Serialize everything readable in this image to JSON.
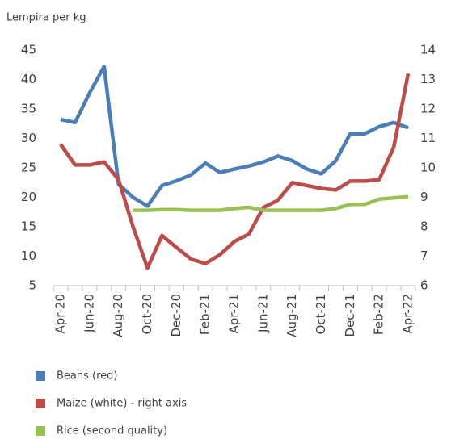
{
  "chart_data": {
    "type": "line",
    "y_axis_label": "Lempira per kg",
    "categories": [
      "Apr-20",
      null,
      "Jun-20",
      null,
      "Aug-20",
      null,
      "Oct-20",
      null,
      "Dec-20",
      null,
      "Feb-21",
      null,
      "Apr-21",
      null,
      "Jun-21",
      null,
      "Aug-21",
      null,
      "Oct-21",
      null,
      "Dec-21",
      null,
      "Feb-22",
      null,
      "Apr-22"
    ],
    "series": [
      {
        "name": "Beans (red)",
        "color": "#4a7ebb",
        "values": [
          33.2,
          32.7,
          37.7,
          42.2,
          22.2,
          20.0,
          18.5,
          22.0,
          22.8,
          23.8,
          25.8,
          24.2,
          24.8,
          25.3,
          26.0,
          27.0,
          26.2,
          24.8,
          24.0,
          26.2,
          30.8,
          30.8,
          32.0,
          32.7,
          31.8
        ]
      },
      {
        "name": "Maize (white) - right axis",
        "color": "#be4b48",
        "axis": "y2",
        "values": [
          10.8,
          10.1,
          10.1,
          10.2,
          9.6,
          8.0,
          6.6,
          7.7,
          7.3,
          6.9,
          6.75,
          7.05,
          7.5,
          7.75,
          8.65,
          8.9,
          9.5,
          9.4,
          9.3,
          9.25,
          9.55,
          9.55,
          9.6,
          10.7,
          13.2
        ]
      },
      {
        "name": "Rice (second quality)",
        "color": "#98c152",
        "values": [
          null,
          null,
          null,
          null,
          null,
          17.8,
          17.8,
          17.9,
          17.9,
          17.8,
          17.8,
          17.8,
          18.1,
          18.3,
          17.8,
          17.8,
          17.8,
          17.8,
          17.8,
          18.1,
          18.8,
          18.8,
          19.7,
          19.9,
          20.1
        ]
      }
    ],
    "ylim": [
      5,
      45
    ],
    "yticks": [
      5,
      10,
      15,
      20,
      25,
      30,
      35,
      40,
      45
    ],
    "y2lim": [
      6,
      14
    ],
    "y2ticks": [
      6,
      7,
      8,
      9,
      10,
      11,
      12,
      13,
      14
    ],
    "legend": "bottom"
  }
}
